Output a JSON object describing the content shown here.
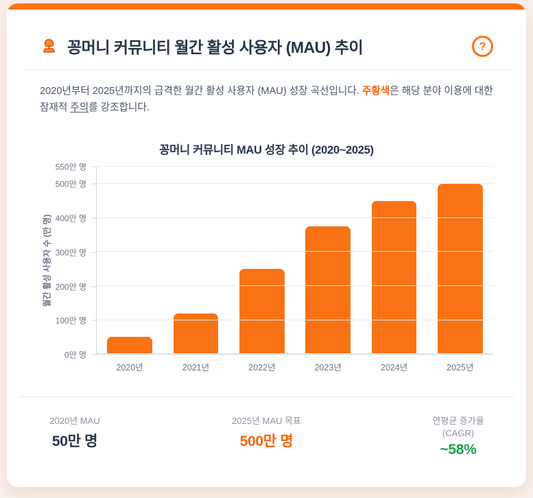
{
  "header": {
    "title": "꽁머니 커뮤니티 월간 활성 사용자 (MAU) 추이",
    "help": "?"
  },
  "description": {
    "part1": "2020년부터 2025년까지의 급격한 월간 활성 사용자 (MAU) 성장 곡선입니다. ",
    "highlight": "주황색",
    "part2": "은 해당 분야 이용에 대한 잠재적 ",
    "underline": "주의",
    "part3": "를 강조합니다."
  },
  "chart_data": {
    "type": "bar",
    "title": "꽁머니 커뮤니티 MAU 성장 추이 (2020~2025)",
    "categories": [
      "2020년",
      "2021년",
      "2022년",
      "2023년",
      "2024년",
      "2025년"
    ],
    "values": [
      50,
      120,
      250,
      375,
      450,
      500
    ],
    "unit": "만 명",
    "ylabel": "월간 활성 사용자 수 (만 명)",
    "xlabel": "",
    "yticks": [
      0,
      100,
      200,
      300,
      400,
      500,
      550
    ],
    "ytick_suffix": "만 명",
    "ylim": [
      0,
      550
    ],
    "grid": true,
    "legend": false,
    "bar_color": "#f97316"
  },
  "stats": [
    {
      "label": "2020년 MAU",
      "value": "50만 명"
    },
    {
      "label": "2025년 MAU 목표",
      "value": "500만 명"
    },
    {
      "label": "연평균 증가율",
      "label2": "(CAGR)",
      "value": "~58%"
    }
  ],
  "colors": {
    "accent": "#f97316",
    "accent_text": "#f4650f",
    "title": "#27344d",
    "body_text": "#475569",
    "muted": "#6b7686",
    "grid": "#e9edf2",
    "axis": "#cbd5e1",
    "green": "#16a34a",
    "page_bg": "#f9f0ea",
    "divider": "#e8eaef",
    "footer_divider": "#f3e2d3"
  }
}
